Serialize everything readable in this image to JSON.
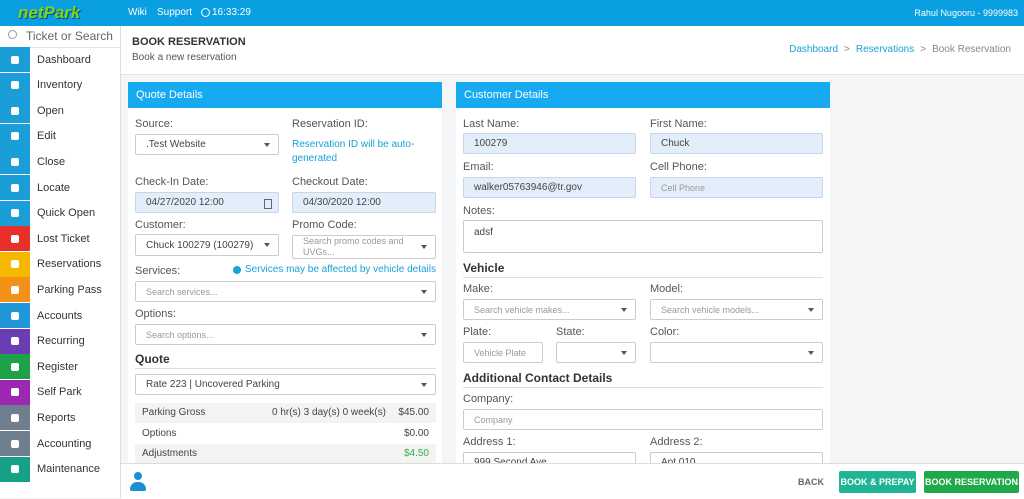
{
  "topbar": {
    "logo": "netPark",
    "links": [
      "Wiki",
      "Support"
    ],
    "time": "16:33:29",
    "user": "Rahul Nugooru - 9999983"
  },
  "sidebar": {
    "search": "Ticket or Search",
    "items": [
      "Dashboard",
      "Inventory",
      "Open",
      "Edit",
      "Close",
      "Locate",
      "Quick Open",
      "Lost Ticket",
      "Reservations",
      "Parking Pass",
      "Accounts",
      "Recurring",
      "Register",
      "Self Park",
      "Reports",
      "Accounting",
      "Maintenance"
    ]
  },
  "header": {
    "title": "BOOK RESERVATION",
    "subtitle": "Book a new reservation",
    "breadcrumb": [
      "Dashboard",
      "Reservations",
      "Book Reservation"
    ],
    "separator": ">"
  },
  "quote_details": {
    "title": "Quote Details",
    "source": {
      "label": "Source:",
      "value": ".Test Website"
    },
    "reservation_id": {
      "label": "Reservation ID:",
      "value": "Reservation ID will be auto-generated"
    },
    "check_in": {
      "label": "Check-In Date:",
      "value": "04/27/2020 12:00"
    },
    "checkout": {
      "label": "Checkout Date:",
      "value": "04/30/2020 12:00"
    },
    "customer": {
      "label": "Customer:",
      "value": "Chuck 100279 (100279)"
    },
    "promo_code": {
      "label": "Promo Code:",
      "placeholder": "Search promo codes and UVGs..."
    },
    "services": {
      "label": "Services:",
      "note": "Services may be affected by vehicle details",
      "placeholder": "Search services..."
    },
    "options": {
      "label": "Options:",
      "placeholder": "Search options..."
    },
    "quote": {
      "title": "Quote",
      "rate": "Rate 223 | Uncovered Parking",
      "rows": [
        {
          "label": "Parking Gross",
          "detail": "0 hr(s) 3 day(s) 0 week(s)",
          "amount": "$45.00"
        },
        {
          "label": "Options",
          "amount": "$0.00"
        },
        {
          "label": "Adjustments",
          "amount": "$4.50"
        }
      ]
    }
  },
  "customer_details": {
    "title": "Customer Details",
    "last_name": {
      "label": "Last Name:",
      "value": "100279"
    },
    "first_name": {
      "label": "First Name:",
      "value": "Chuck"
    },
    "email": {
      "label": "Email:",
      "value": "walker05763946@tr.gov"
    },
    "cell_phone": {
      "label": "Cell Phone:",
      "placeholder": "Cell Phone"
    },
    "notes": {
      "label": "Notes:",
      "value": "adsf"
    },
    "vehicle": {
      "title": "Vehicle",
      "make": {
        "label": "Make:",
        "placeholder": "Search vehicle makes..."
      },
      "model": {
        "label": "Model:",
        "placeholder": "Search vehicle models..."
      },
      "plate": {
        "label": "Plate:",
        "placeholder": "Vehicle Plate"
      },
      "state": {
        "label": "State:"
      },
      "color": {
        "label": "Color:"
      }
    },
    "additional": {
      "title": "Additional Contact Details",
      "company": {
        "label": "Company:",
        "placeholder": "Company"
      },
      "address1": {
        "label": "Address 1:",
        "value": "999 Second Ave"
      },
      "address2": {
        "label": "Address 2:",
        "value": "Apt 010"
      }
    }
  },
  "footer": {
    "buttons": [
      "BACK",
      "BOOK & PREPAY",
      "BOOK RESERVATION"
    ]
  }
}
